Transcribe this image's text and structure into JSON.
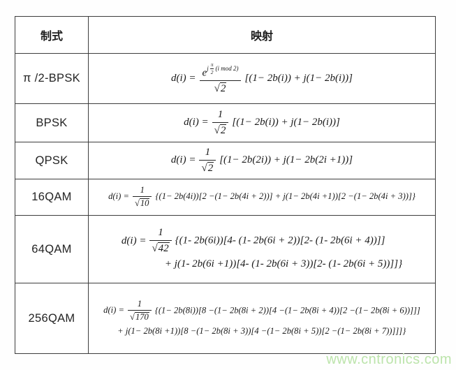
{
  "colors": {
    "table_border": "#3d3d3d",
    "formula_text": "#191919",
    "watermark_green": "#bce4ab"
  },
  "watermark": "www.cntronics.com",
  "table": {
    "headers": {
      "col1": "制式",
      "col2": "映射"
    },
    "rows": [
      {
        "scheme": "π /2-BPSK",
        "formula": {
          "lead": "d(i) =",
          "num_base": "e",
          "exp_j": "j",
          "exp_frac_num": "π",
          "exp_frac_den": "2",
          "exp_tail": "(i mod 2)",
          "sqrt_sym": "√",
          "den_radicand": "2",
          "lines": [
            "[(1− 2b(i)) + j(1− 2b(i))]"
          ]
        }
      },
      {
        "scheme": "BPSK",
        "formula": {
          "lead": "d(i) =",
          "num": "1",
          "sqrt_sym": "√",
          "den_radicand": "2",
          "lines": [
            "[(1− 2b(i)) + j(1− 2b(i))]"
          ]
        }
      },
      {
        "scheme": "QPSK",
        "formula": {
          "lead": "d(i) =",
          "num": "1",
          "sqrt_sym": "√",
          "den_radicand": "2",
          "lines": [
            "[(1− 2b(2i)) + j(1− 2b(2i +1))]"
          ]
        }
      },
      {
        "scheme": "16QAM",
        "formula": {
          "lead": "d(i) =",
          "num": "1",
          "sqrt_sym": "√",
          "den_radicand": "10",
          "lines": [
            "{(1− 2b(4i))[2 −(1− 2b(4i + 2))] + j(1− 2b(4i +1))[2 −(1− 2b(4i + 3))]}"
          ]
        }
      },
      {
        "scheme": "64QAM",
        "formula": {
          "lead": "d(i) =",
          "num": "1",
          "sqrt_sym": "√",
          "den_radicand": "42",
          "lines": [
            "{(1- 2b(6i))[4- (1- 2b(6i + 2))[2- (1- 2b(6i + 4))]]",
            "+ j(1- 2b(6i +1))[4- (1- 2b(6i + 3))[2- (1- 2b(6i + 5))]]}"
          ]
        }
      },
      {
        "scheme": "256QAM",
        "formula": {
          "lead": "d(i) =",
          "num": "1",
          "sqrt_sym": "√",
          "den_radicand": "170",
          "lines": [
            "{(1− 2b(8i))[8 −(1− 2b(8i + 2))[4 −(1− 2b(8i + 4))[2 −(1− 2b(8i + 6))]]]",
            "+ j(1− 2b(8i +1))[8 −(1− 2b(8i + 3))[4 −(1− 2b(8i + 5))[2 −(1− 2b(8i + 7))]]]}"
          ]
        }
      }
    ]
  }
}
